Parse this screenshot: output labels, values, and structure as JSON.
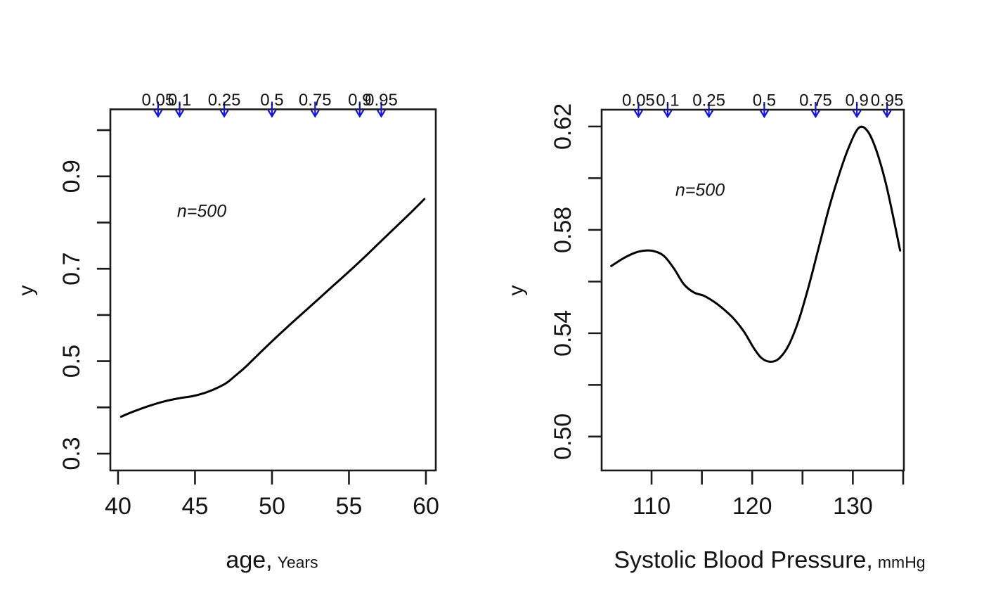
{
  "page": {
    "background": "#ffffff",
    "text_color": "#141414",
    "line_color": "#1a1a1a"
  },
  "chart_data": [
    {
      "type": "line",
      "title": "",
      "xlabel_main": "age,",
      "xlabel_unit": "Years",
      "ylabel": "y",
      "annotation": "n=500",
      "grid": false,
      "legend": "none",
      "xlim": [
        39.5,
        60.64
      ],
      "ylim": [
        0.2635,
        1.045
      ],
      "frame_color": "#1a1a1a",
      "x_ticks": [
        {
          "value": 40,
          "label": "40"
        },
        {
          "value": 45,
          "label": "45"
        },
        {
          "value": 50,
          "label": "50"
        },
        {
          "value": 55,
          "label": "55"
        },
        {
          "value": 60,
          "label": "60"
        }
      ],
      "y_ticks": [
        {
          "value": 0.3,
          "label": "0.3"
        },
        {
          "value": 0.4,
          "label": ""
        },
        {
          "value": 0.5,
          "label": "0.5"
        },
        {
          "value": 0.6,
          "label": ""
        },
        {
          "value": 0.7,
          "label": "0.7"
        },
        {
          "value": 0.8,
          "label": ""
        },
        {
          "value": 0.9,
          "label": "0.9"
        },
        {
          "value": 1.0,
          "label": ""
        }
      ],
      "quantile_rug": {
        "color": "#1212e8",
        "labels": [
          "0.05",
          "0.1",
          "0.25",
          "0.5",
          "0.75",
          "0.9",
          "0.95"
        ],
        "values": [
          42.6,
          44.0,
          46.9,
          50.0,
          52.8,
          55.7,
          57.1
        ]
      },
      "series": [
        {
          "name": "estimate",
          "color": "#000000",
          "x": [
            40.2,
            41,
            42,
            43,
            44,
            44.8,
            45.6,
            46.3,
            47.0,
            47.6,
            48.3,
            49,
            50,
            51,
            52,
            53,
            54,
            55,
            56,
            57,
            58,
            59,
            59.9
          ],
          "y": [
            0.38,
            0.391,
            0.403,
            0.413,
            0.42,
            0.424,
            0.431,
            0.44,
            0.452,
            0.468,
            0.488,
            0.511,
            0.543,
            0.574,
            0.604,
            0.634,
            0.664,
            0.694,
            0.725,
            0.757,
            0.789,
            0.821,
            0.851
          ]
        }
      ]
    },
    {
      "type": "line",
      "title": "",
      "xlabel_main": "Systolic Blood Pressure,",
      "xlabel_unit": "mmHg",
      "ylabel": "y",
      "annotation": "n=500",
      "grid": false,
      "legend": "none",
      "xlim": [
        105.04,
        135.07
      ],
      "ylim": [
        0.4869,
        0.6265
      ],
      "frame_color": "#1a1a1a",
      "x_ticks": [
        {
          "value": 110,
          "label": "110"
        },
        {
          "value": 115,
          "label": ""
        },
        {
          "value": 120,
          "label": "120"
        },
        {
          "value": 125,
          "label": ""
        },
        {
          "value": 130,
          "label": "130"
        },
        {
          "value": 135,
          "label": ""
        }
      ],
      "y_ticks": [
        {
          "value": 0.5,
          "label": "0.50"
        },
        {
          "value": 0.52,
          "label": ""
        },
        {
          "value": 0.54,
          "label": "0.54"
        },
        {
          "value": 0.56,
          "label": ""
        },
        {
          "value": 0.58,
          "label": "0.58"
        },
        {
          "value": 0.6,
          "label": ""
        },
        {
          "value": 0.62,
          "label": "0.62"
        }
      ],
      "quantile_rug": {
        "color": "#1212e8",
        "labels": [
          "0.05",
          "0.1",
          "0.25",
          "0.5",
          "0.75",
          "0.9",
          "0.95"
        ],
        "values": [
          108.7,
          111.6,
          115.7,
          121.2,
          126.3,
          130.4,
          133.4
        ]
      },
      "series": [
        {
          "name": "estimate",
          "color": "#000000",
          "x": [
            106,
            107.2,
            108.4,
            109.4,
            110.2,
            111.2,
            112.2,
            113.2,
            114.2,
            115.2,
            116.2,
            117.2,
            118.2,
            119.2,
            120.2,
            120.9,
            121.7,
            122.6,
            123.6,
            124.6,
            125.6,
            126.6,
            127.6,
            128.6,
            129.6,
            130.6,
            131.5,
            132.4,
            133.4,
            134.7
          ],
          "y": [
            0.566,
            0.569,
            0.5712,
            0.572,
            0.5718,
            0.57,
            0.5652,
            0.559,
            0.5558,
            0.5545,
            0.5522,
            0.5492,
            0.5455,
            0.5405,
            0.534,
            0.5305,
            0.529,
            0.53,
            0.5352,
            0.5448,
            0.558,
            0.573,
            0.588,
            0.601,
            0.612,
            0.6195,
            0.618,
            0.61,
            0.596,
            0.572
          ]
        }
      ]
    }
  ]
}
